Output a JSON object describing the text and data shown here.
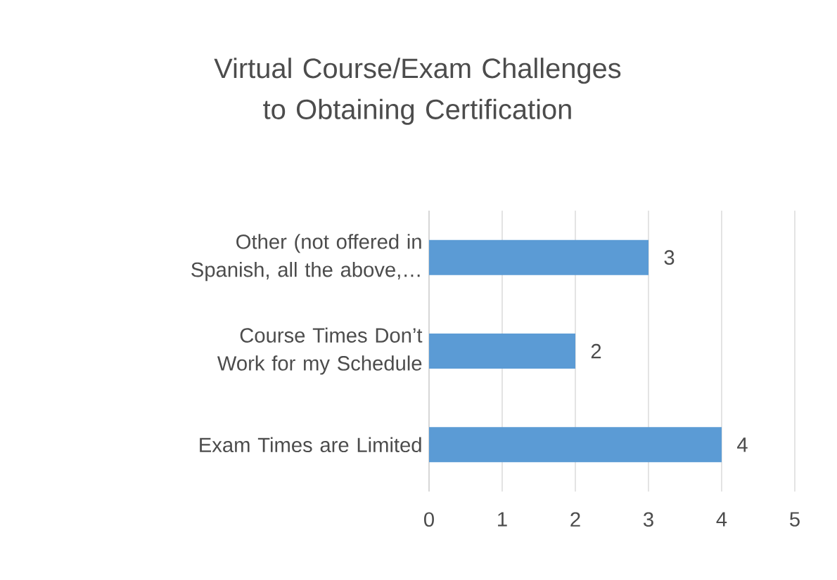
{
  "chart_data": {
    "type": "bar",
    "orientation": "horizontal",
    "title": "Virtual Course/Exam Challenges to Obtaining Certification",
    "categories": [
      "Other (not offered in Spanish, all the above,…",
      "Course Times Don’t Work for my Schedule",
      "Exam Times are Limited"
    ],
    "values": [
      3,
      2,
      4
    ],
    "color": "#5b9bd5",
    "xlim": [
      0,
      5
    ],
    "xticks": [
      0,
      1,
      2,
      3,
      4,
      5
    ],
    "grid": "x",
    "data_labels": true
  }
}
